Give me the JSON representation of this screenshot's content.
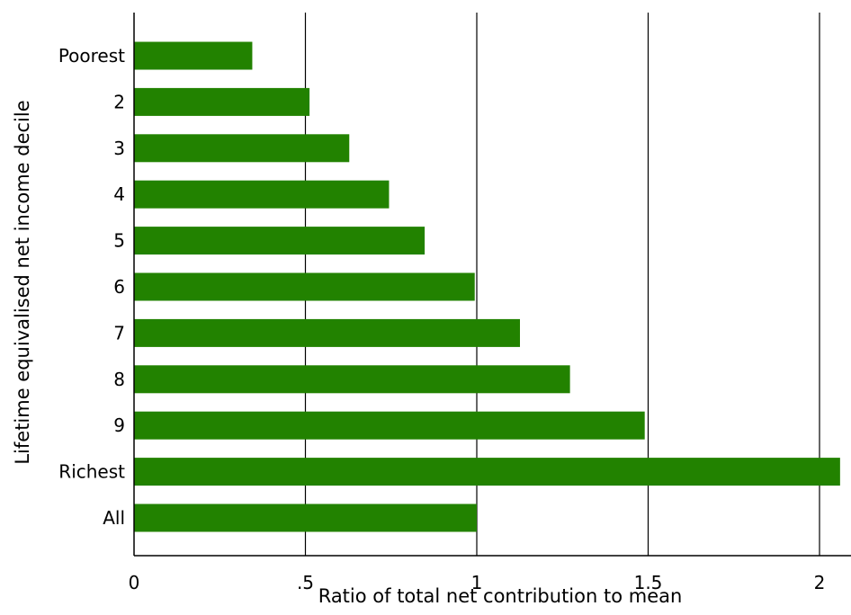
{
  "chart_data": {
    "type": "bar",
    "orientation": "horizontal",
    "categories": [
      "Poorest",
      "2",
      "3",
      "4",
      "5",
      "6",
      "7",
      "8",
      "9",
      "Richest",
      "All"
    ],
    "values": [
      0.345,
      0.512,
      0.628,
      0.744,
      0.848,
      0.994,
      1.126,
      1.272,
      1.49,
      2.06,
      1.0
    ],
    "xlabel": "Ratio of total net contribution to mean",
    "ylabel": "Lifetime equivalised net income decile",
    "xlim": [
      0,
      2.08
    ],
    "xticks": [
      0,
      0.5,
      1,
      1.5,
      2
    ],
    "xtick_labels": [
      "0",
      ".5",
      "1",
      "1.5",
      "2"
    ],
    "grid": "vertical",
    "colors": {
      "bar": "#228200",
      "grid": "#000000",
      "axis": "#000000"
    }
  }
}
